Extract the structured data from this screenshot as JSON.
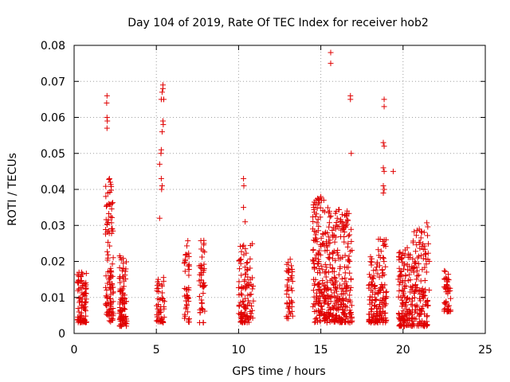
{
  "chart_data": {
    "type": "scatter",
    "title": "Day 104 of 2019, Rate Of TEC Index for receiver hob2",
    "xlabel": "GPS time / hours",
    "ylabel": "ROTI / TECUs",
    "xlim": [
      0,
      25
    ],
    "ylim": [
      0,
      0.08
    ],
    "xticks": [
      0,
      5,
      10,
      15,
      20,
      25
    ],
    "yticks": [
      0,
      0.01,
      0.02,
      0.03,
      0.04,
      0.05,
      0.06,
      0.07,
      0.08
    ],
    "xtick_labels": [
      "0",
      "5",
      "10",
      "15",
      "20",
      "25"
    ],
    "ytick_labels": [
      "0",
      "0.01",
      "0.02",
      "0.03",
      "0.04",
      "0.05",
      "0.06",
      "0.07",
      "0.08"
    ],
    "grid": true,
    "marker": "+",
    "color": "#e00000",
    "clusters": [
      {
        "x": [
          0.2,
          0.75
        ],
        "y": [
          0.003,
          0.017
        ],
        "n": 90
      },
      {
        "x": [
          1.9,
          2.4
        ],
        "y": [
          0.003,
          0.043
        ],
        "n": 110
      },
      {
        "x": [
          2.75,
          3.2
        ],
        "y": [
          0.002,
          0.023
        ],
        "n": 90
      },
      {
        "x": [
          5.0,
          5.5
        ],
        "y": [
          0.003,
          0.016
        ],
        "n": 50
      },
      {
        "x": [
          6.7,
          7.0
        ],
        "y": [
          0.003,
          0.026
        ],
        "n": 45
      },
      {
        "x": [
          7.6,
          7.95
        ],
        "y": [
          0.003,
          0.026
        ],
        "n": 45
      },
      {
        "x": [
          10.0,
          10.9
        ],
        "y": [
          0.003,
          0.025
        ],
        "n": 110
      },
      {
        "x": [
          12.9,
          13.3
        ],
        "y": [
          0.004,
          0.021
        ],
        "n": 45
      },
      {
        "x": [
          14.5,
          15.3
        ],
        "y": [
          0.003,
          0.038
        ],
        "n": 150
      },
      {
        "x": [
          15.3,
          16.2
        ],
        "y": [
          0.003,
          0.035
        ],
        "n": 150
      },
      {
        "x": [
          16.2,
          16.9
        ],
        "y": [
          0.003,
          0.034
        ],
        "n": 120
      },
      {
        "x": [
          17.9,
          18.4
        ],
        "y": [
          0.003,
          0.022
        ],
        "n": 70
      },
      {
        "x": [
          18.4,
          19.0
        ],
        "y": [
          0.003,
          0.027
        ],
        "n": 90
      },
      {
        "x": [
          19.7,
          20.6
        ],
        "y": [
          0.002,
          0.024
        ],
        "n": 140
      },
      {
        "x": [
          20.6,
          21.6
        ],
        "y": [
          0.002,
          0.031
        ],
        "n": 130
      },
      {
        "x": [
          22.5,
          22.9
        ],
        "y": [
          0.006,
          0.018
        ],
        "n": 45
      }
    ],
    "outliers": [
      {
        "x": 2.0,
        "y": 0.066
      },
      {
        "x": 1.98,
        "y": 0.064
      },
      {
        "x": 2.0,
        "y": 0.06
      },
      {
        "x": 2.02,
        "y": 0.059
      },
      {
        "x": 2.0,
        "y": 0.057
      },
      {
        "x": 2.15,
        "y": 0.043
      },
      {
        "x": 2.2,
        "y": 0.042
      },
      {
        "x": 2.05,
        "y": 0.039
      },
      {
        "x": 2.1,
        "y": 0.036
      },
      {
        "x": 5.4,
        "y": 0.069
      },
      {
        "x": 5.4,
        "y": 0.068
      },
      {
        "x": 5.35,
        "y": 0.067
      },
      {
        "x": 5.3,
        "y": 0.065
      },
      {
        "x": 5.45,
        "y": 0.065
      },
      {
        "x": 5.4,
        "y": 0.059
      },
      {
        "x": 5.42,
        "y": 0.058
      },
      {
        "x": 5.35,
        "y": 0.056
      },
      {
        "x": 5.3,
        "y": 0.051
      },
      {
        "x": 5.28,
        "y": 0.05
      },
      {
        "x": 5.2,
        "y": 0.047
      },
      {
        "x": 5.3,
        "y": 0.043
      },
      {
        "x": 5.35,
        "y": 0.041
      },
      {
        "x": 5.32,
        "y": 0.04
      },
      {
        "x": 5.2,
        "y": 0.032
      },
      {
        "x": 10.3,
        "y": 0.043
      },
      {
        "x": 10.32,
        "y": 0.041
      },
      {
        "x": 10.3,
        "y": 0.035
      },
      {
        "x": 10.4,
        "y": 0.031
      },
      {
        "x": 15.6,
        "y": 0.078
      },
      {
        "x": 15.6,
        "y": 0.075
      },
      {
        "x": 16.8,
        "y": 0.066
      },
      {
        "x": 16.8,
        "y": 0.065
      },
      {
        "x": 16.85,
        "y": 0.05
      },
      {
        "x": 18.85,
        "y": 0.065
      },
      {
        "x": 18.85,
        "y": 0.063
      },
      {
        "x": 18.8,
        "y": 0.053
      },
      {
        "x": 18.85,
        "y": 0.052
      },
      {
        "x": 18.8,
        "y": 0.046
      },
      {
        "x": 18.85,
        "y": 0.045
      },
      {
        "x": 18.8,
        "y": 0.041
      },
      {
        "x": 18.85,
        "y": 0.04
      },
      {
        "x": 18.8,
        "y": 0.039
      },
      {
        "x": 19.4,
        "y": 0.045
      },
      {
        "x": 15.0,
        "y": 0.038
      },
      {
        "x": 15.05,
        "y": 0.037
      },
      {
        "x": 15.9,
        "y": 0.029
      },
      {
        "x": 16.3,
        "y": 0.033
      },
      {
        "x": 16.6,
        "y": 0.034
      }
    ]
  }
}
